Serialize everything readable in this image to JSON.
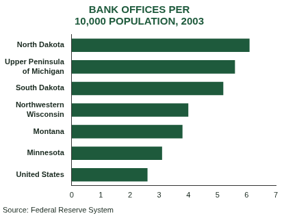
{
  "chart_data": {
    "type": "bar",
    "orientation": "horizontal",
    "title": [
      "BANK OFFICES PER",
      "10,000 POPULATION, 2003"
    ],
    "source": "Source: Federal Reserve System",
    "categories": [
      "North Dakota",
      [
        "Upper Peninsula",
        "of Michigan"
      ],
      "South Dakota",
      [
        "Northwestern",
        "Wisconsin"
      ],
      "Montana",
      "Minnesota",
      "United States"
    ],
    "values": [
      6.1,
      5.6,
      5.2,
      4.0,
      3.8,
      3.1,
      2.6
    ],
    "color": "#1e5a3c",
    "xlim": [
      0,
      7
    ],
    "xticks": [
      0,
      1,
      2,
      3,
      4,
      5,
      6,
      7
    ],
    "grid": false
  }
}
